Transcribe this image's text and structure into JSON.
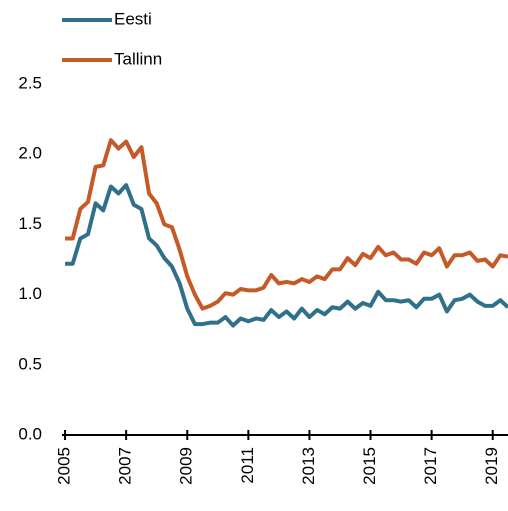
{
  "chart_data": {
    "type": "line",
    "x": [
      2005,
      2005.25,
      2005.5,
      2005.75,
      2006,
      2006.25,
      2006.5,
      2006.75,
      2007,
      2007.25,
      2007.5,
      2007.75,
      2008,
      2008.25,
      2008.5,
      2008.75,
      2009,
      2009.25,
      2009.5,
      2009.75,
      2010,
      2010.25,
      2010.5,
      2010.75,
      2011,
      2011.25,
      2011.5,
      2011.75,
      2012,
      2012.25,
      2012.5,
      2012.75,
      2013,
      2013.25,
      2013.5,
      2013.75,
      2014,
      2014.25,
      2014.5,
      2014.75,
      2015,
      2015.25,
      2015.5,
      2015.75,
      2016,
      2016.25,
      2016.5,
      2016.75,
      2017,
      2017.25,
      2017.5,
      2017.75,
      2018,
      2018.25,
      2018.5,
      2018.75,
      2019,
      2019.25,
      2019.5
    ],
    "series": [
      {
        "name": "Eesti",
        "color": "#31708a",
        "values": [
          1.22,
          1.22,
          1.4,
          1.43,
          1.65,
          1.6,
          1.77,
          1.72,
          1.78,
          1.64,
          1.61,
          1.4,
          1.35,
          1.26,
          1.2,
          1.08,
          0.9,
          0.79,
          0.79,
          0.8,
          0.8,
          0.84,
          0.78,
          0.83,
          0.81,
          0.83,
          0.82,
          0.89,
          0.84,
          0.88,
          0.83,
          0.9,
          0.84,
          0.89,
          0.86,
          0.91,
          0.9,
          0.95,
          0.9,
          0.94,
          0.92,
          1.02,
          0.96,
          0.96,
          0.95,
          0.96,
          0.91,
          0.97,
          0.97,
          1.0,
          0.88,
          0.96,
          0.97,
          1.0,
          0.95,
          0.92,
          0.92,
          0.96,
          0.91
        ]
      },
      {
        "name": "Tallinn",
        "color": "#c55a28",
        "values": [
          1.4,
          1.4,
          1.61,
          1.66,
          1.91,
          1.92,
          2.1,
          2.04,
          2.09,
          1.98,
          2.05,
          1.72,
          1.65,
          1.5,
          1.48,
          1.32,
          1.13,
          1.0,
          0.9,
          0.92,
          0.95,
          1.01,
          1.0,
          1.04,
          1.03,
          1.03,
          1.05,
          1.14,
          1.08,
          1.09,
          1.08,
          1.11,
          1.09,
          1.13,
          1.11,
          1.18,
          1.18,
          1.26,
          1.21,
          1.29,
          1.26,
          1.34,
          1.28,
          1.3,
          1.25,
          1.25,
          1.22,
          1.3,
          1.28,
          1.33,
          1.2,
          1.28,
          1.28,
          1.3,
          1.24,
          1.25,
          1.2,
          1.28,
          1.27
        ]
      }
    ],
    "xlim": [
      2004.9,
      2019.5
    ],
    "xticks": [
      2005,
      2007,
      2009,
      2011,
      2013,
      2015,
      2017,
      2019
    ],
    "ylim": [
      0,
      2.5
    ],
    "yticks": [
      {
        "value": 0,
        "label": "0.0"
      },
      {
        "value": 0.5,
        "label": "0.5"
      },
      {
        "value": 1,
        "label": "1.0"
      },
      {
        "value": 1.5,
        "label": "1.5"
      },
      {
        "value": 2,
        "label": "2.0"
      },
      {
        "value": 2.5,
        "label": "2.5"
      }
    ],
    "grid": false
  }
}
